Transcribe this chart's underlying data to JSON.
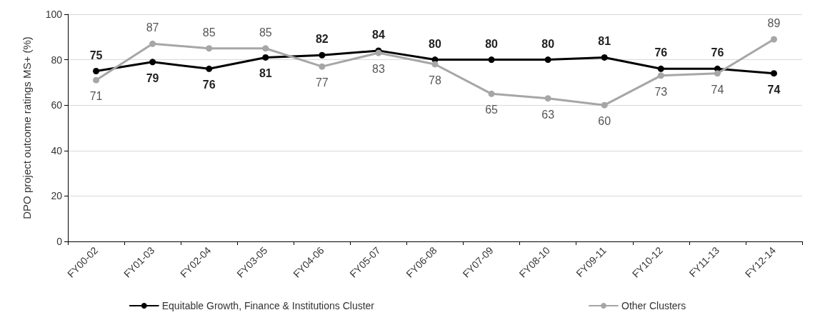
{
  "chart_data": {
    "type": "line",
    "ylabel": "DPO project outcome ratings MS+ (%)",
    "categories": [
      "FY00-02",
      "FY01-03",
      "FY02-04",
      "FY03-05",
      "FY04-06",
      "FY05-07",
      "FY06-08",
      "FY07-09",
      "FY08-10",
      "FY09-11",
      "FY10-12",
      "FY11-13",
      "FY12-14"
    ],
    "series": [
      {
        "name": "Equitable Growth, Finance & Institutions Cluster",
        "color": "#000000",
        "values": [
          75,
          79,
          76,
          81,
          82,
          84,
          80,
          80,
          80,
          81,
          76,
          76,
          74
        ]
      },
      {
        "name": "Other Clusters",
        "color": "#a6a6a6",
        "values": [
          71,
          87,
          85,
          85,
          77,
          83,
          78,
          65,
          63,
          60,
          73,
          74,
          89
        ]
      }
    ],
    "ylim": [
      0,
      100
    ],
    "yticks": [
      0,
      20,
      40,
      60,
      80,
      100
    ],
    "grid": "y",
    "legend": "bottom",
    "marker": "circle",
    "line_style": "solid",
    "data_labels": true
  }
}
